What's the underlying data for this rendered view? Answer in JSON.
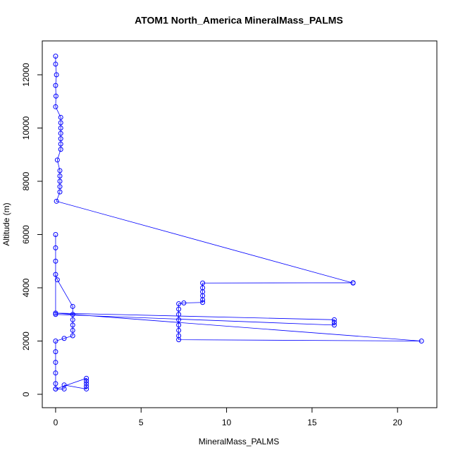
{
  "chart_data": {
    "type": "line",
    "title": "ATOM1 North_America MineralMass_PALMS",
    "x_label": "MineralMass_PALMS",
    "y_label": "Altitude (m)",
    "series": [
      {
        "color": "#0000ff",
        "x": [
          0,
          0,
          0.05,
          0,
          0.02,
          0,
          0.3,
          0.3,
          0.3,
          0.3,
          0.3,
          0.3,
          0.3,
          0.1,
          0.25,
          0.25,
          0.25,
          0.25,
          0.25,
          0.05,
          17.4,
          17.4,
          8.6,
          8.6,
          8.6,
          8.6,
          8.6,
          8.6,
          7.5,
          7.2,
          7.2,
          7.2,
          7.2,
          7.2,
          7.2,
          7.2,
          7.2,
          21.4,
          0,
          16.3,
          16.3,
          16.3,
          0,
          0,
          0,
          0,
          0,
          0.1,
          1.0,
          1.0,
          1.0,
          1.0,
          1.0,
          1.0,
          0.5,
          0,
          0,
          0,
          0,
          0,
          0,
          0.5,
          0.5,
          1.8,
          1.8,
          1.8,
          1.8,
          1.8,
          0
        ],
        "y": [
          12700,
          12400,
          12000,
          11600,
          11200,
          10800,
          10400,
          10200,
          10000,
          9800,
          9600,
          9400,
          9200,
          8800,
          8400,
          8200,
          8000,
          7800,
          7600,
          7250,
          4180,
          4190,
          4180,
          4000,
          3850,
          3700,
          3550,
          3450,
          3430,
          3400,
          3200,
          3000,
          2800,
          2600,
          2400,
          2200,
          2050,
          2000,
          3050,
          2800,
          2700,
          2600,
          3000,
          6000,
          5500,
          5000,
          4500,
          4300,
          3300,
          3000,
          2800,
          2600,
          2400,
          2200,
          2100,
          2000,
          1600,
          1200,
          800,
          400,
          200,
          200,
          350,
          200,
          300,
          400,
          500,
          600,
          200
        ]
      }
    ],
    "xlim": [
      -0.78,
      22.3
    ],
    "ylim": [
      -503,
      13272
    ],
    "xticks": [
      0,
      5,
      10,
      15,
      20
    ],
    "yticks": [
      0,
      2000,
      4000,
      6000,
      8000,
      10000,
      12000
    ]
  }
}
